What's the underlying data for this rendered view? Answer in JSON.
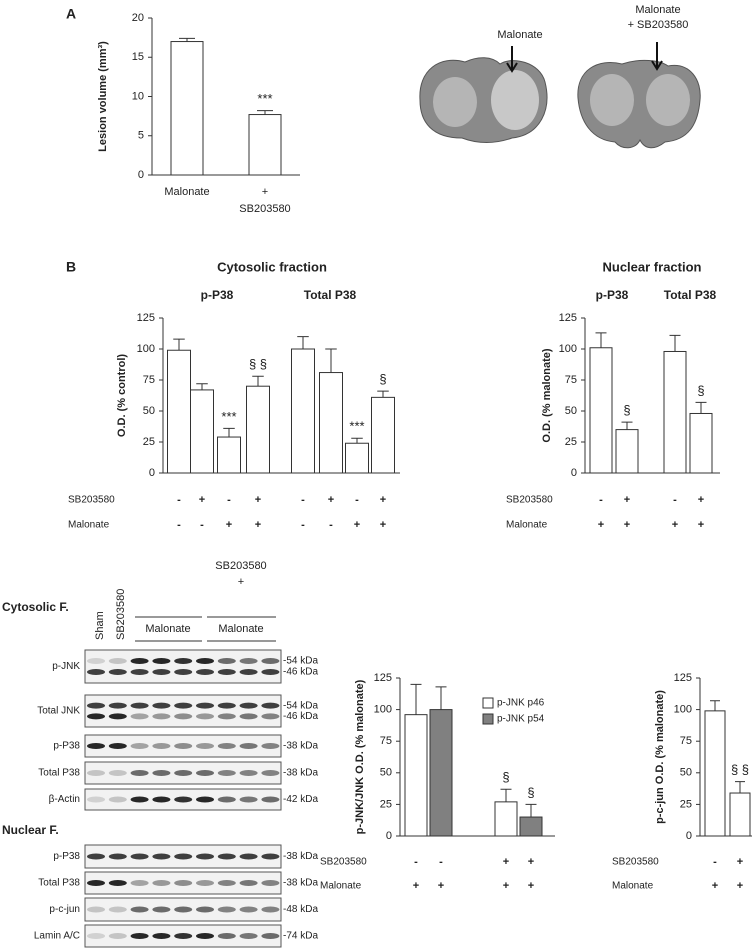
{
  "panel_labels": [
    "A",
    "B"
  ],
  "brain_images": [
    {
      "label": "Malonate"
    },
    {
      "label": "Malonate\n+ SB203580"
    }
  ],
  "chart_data": [
    {
      "type": "bar",
      "ylabel": "Lesion volume (mm³)",
      "categories": [
        "Malonate",
        "+\nSB203580"
      ],
      "series": [
        {
          "color": "#ffffff",
          "values": [
            17,
            7.7
          ],
          "errors": [
            0.4,
            0.5
          ],
          "significance": [
            null,
            "***"
          ]
        }
      ],
      "ylim": [
        0,
        20
      ],
      "yticks": [
        0,
        5,
        10,
        15,
        20
      ]
    },
    {
      "type": "bar",
      "title": "Cytosolic fraction",
      "groups": [
        "p-P38",
        "Total P38"
      ],
      "ylabel": "O.D. (% control)",
      "series": [
        {
          "color": "#ffffff",
          "values": [
            99,
            67,
            29,
            70,
            100,
            81,
            24,
            61
          ],
          "errors": [
            9,
            5,
            7,
            8,
            10,
            19,
            4,
            5
          ],
          "significance": [
            null,
            null,
            "***",
            "§ §",
            null,
            null,
            "***",
            "§"
          ]
        }
      ],
      "ylim": [
        0,
        125
      ],
      "yticks": [
        0,
        25,
        50,
        75,
        100,
        125
      ],
      "treatments": [
        {
          "label": "SB203580",
          "values": [
            "-",
            "+",
            "-",
            "+",
            "-",
            "+",
            "-",
            "+"
          ]
        },
        {
          "label": "Malonate",
          "values": [
            "-",
            "-",
            "+",
            "+",
            "-",
            "-",
            "+",
            "+"
          ]
        }
      ]
    },
    {
      "type": "bar",
      "title": "Nuclear fraction",
      "groups": [
        "p-P38",
        "Total P38"
      ],
      "ylabel": "O.D. (% malonate)",
      "series": [
        {
          "color": "#ffffff",
          "values": [
            101,
            35,
            98,
            48
          ],
          "errors": [
            12,
            6,
            13,
            9
          ],
          "significance": [
            null,
            "§",
            null,
            "§"
          ]
        }
      ],
      "ylim": [
        0,
        125
      ],
      "yticks": [
        0,
        25,
        50,
        75,
        100,
        125
      ],
      "treatments": [
        {
          "label": "SB203580",
          "values": [
            "-",
            "+",
            "-",
            "+"
          ]
        },
        {
          "label": "Malonate",
          "values": [
            "+",
            "+",
            "+",
            "+"
          ]
        }
      ]
    },
    {
      "type": "bar",
      "ylabel": "p-JNK/JNK O.D. (% malonate)",
      "series": [
        {
          "name": "p-JNK p46",
          "color": "#ffffff",
          "values": [
            96,
            27
          ],
          "errors": [
            24,
            10
          ],
          "significance": [
            null,
            "§"
          ]
        },
        {
          "name": "p-JNK p54",
          "color": "#808080",
          "values": [
            100,
            15
          ],
          "errors": [
            18,
            10
          ],
          "significance": [
            null,
            "§"
          ]
        }
      ],
      "ylim": [
        0,
        125
      ],
      "yticks": [
        0,
        25,
        50,
        75,
        100,
        125
      ],
      "treatments": [
        {
          "label": "SB203580",
          "values": [
            "-",
            "-",
            "+",
            "+"
          ]
        },
        {
          "label": "Malonate",
          "values": [
            "+",
            "+",
            "+",
            "+"
          ]
        }
      ]
    },
    {
      "type": "bar",
      "ylabel": "p-c-jun O.D. (% malonate)",
      "series": [
        {
          "color": "#ffffff",
          "values": [
            99,
            34
          ],
          "errors": [
            8,
            9
          ],
          "significance": [
            null,
            "§ §"
          ]
        }
      ],
      "ylim": [
        0,
        125
      ],
      "yticks": [
        0,
        25,
        50,
        75,
        100,
        125
      ],
      "treatments": [
        {
          "label": "SB203580",
          "values": [
            "-",
            "+"
          ]
        },
        {
          "label": "Malonate",
          "values": [
            "+",
            "+"
          ]
        }
      ]
    }
  ],
  "blot": {
    "columns": [
      "Sham",
      "SB203580",
      "Malonate",
      "SB203580\n+\nMalonate"
    ],
    "sections": [
      {
        "title": "Cytosolic F.",
        "rows": [
          {
            "label": "p-JNK",
            "kda": [
              "-54 kDa",
              "-46 kDa"
            ]
          },
          {
            "label": "Total JNK",
            "kda": [
              "-54 kDa",
              "-46 kDa"
            ]
          },
          {
            "label": "p-P38",
            "kda": [
              "-38 kDa"
            ]
          },
          {
            "label": "Total P38",
            "kda": [
              "-38 kDa"
            ]
          },
          {
            "label": "β-Actin",
            "kda": [
              "-42 kDa"
            ]
          }
        ]
      },
      {
        "title": "Nuclear F.",
        "rows": [
          {
            "label": "p-P38",
            "kda": [
              "-38 kDa"
            ]
          },
          {
            "label": "Total P38",
            "kda": [
              "-38 kDa"
            ]
          },
          {
            "label": "p-c-jun",
            "kda": [
              "-48 kDa"
            ]
          },
          {
            "label": "Lamin A/C",
            "kda": [
              "-74 kDa"
            ]
          }
        ]
      }
    ]
  }
}
